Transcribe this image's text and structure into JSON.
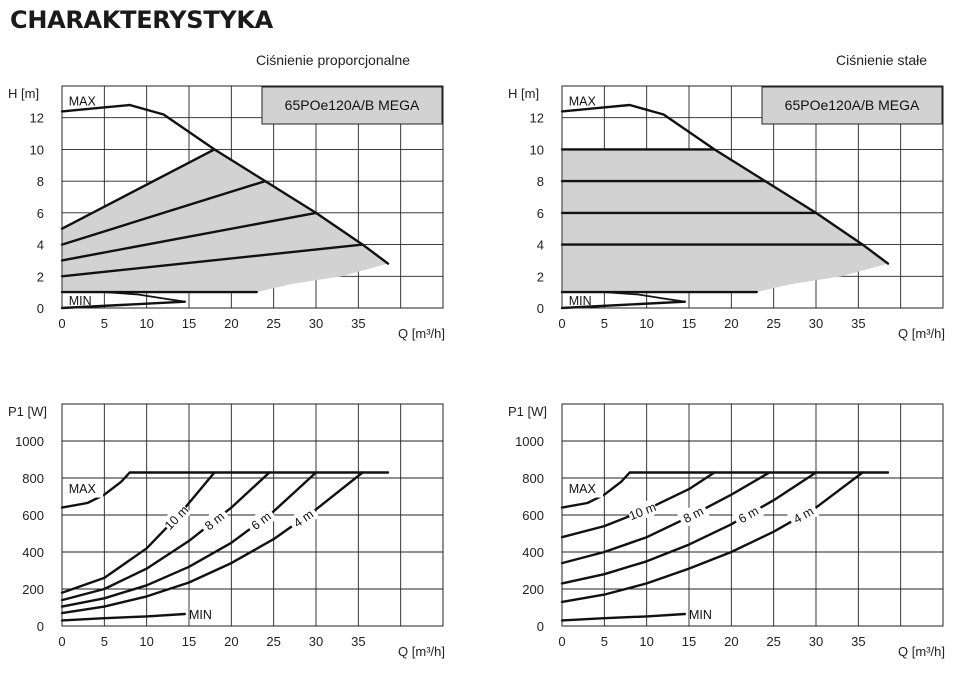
{
  "page_title": "CHARAKTERYSTYKA",
  "left_subtitle": "Ciśnienie proporcjonalne",
  "right_subtitle": "Ciśnienie stałe",
  "model": "65POe120A/B MEGA",
  "colors": {
    "band": "#d2d2d2",
    "line": "#111111",
    "grid": "#222222"
  },
  "chart_data": [
    {
      "id": "h-proportional",
      "type": "line",
      "mode": "proportional",
      "xlabel": "Q [m³/h]",
      "ylabel": "H [m]",
      "xlim": [
        0,
        45
      ],
      "ylim": [
        0,
        14
      ],
      "xticks": [
        0,
        5,
        10,
        15,
        20,
        25,
        30,
        35
      ],
      "yticks": [
        0,
        2,
        4,
        6,
        8,
        10,
        12
      ],
      "grid": true,
      "labels": {
        "max": "MAX",
        "min": "MIN"
      },
      "max_curve": [
        [
          0,
          12.4
        ],
        [
          4,
          12.6
        ],
        [
          8,
          12.8
        ],
        [
          12,
          12.2
        ],
        [
          18,
          10
        ],
        [
          24,
          8
        ],
        [
          30,
          6
        ],
        [
          35.5,
          4
        ],
        [
          38.5,
          2.8
        ]
      ],
      "min_curve": [
        [
          0,
          1
        ],
        [
          5,
          1
        ],
        [
          9,
          0.85
        ],
        [
          12,
          0.6
        ],
        [
          14.5,
          0.4
        ]
      ],
      "shaded_region": [
        [
          0,
          5
        ],
        [
          18,
          10
        ],
        [
          24,
          8
        ],
        [
          30,
          6
        ],
        [
          35.5,
          4
        ],
        [
          38.5,
          2.8
        ],
        [
          33,
          2
        ],
        [
          27,
          1.5
        ],
        [
          23,
          1
        ],
        [
          0,
          1
        ]
      ],
      "series": [
        {
          "points": [
            [
              0,
              5
            ],
            [
              18,
              10
            ]
          ]
        },
        {
          "points": [
            [
              0,
              4
            ],
            [
              24,
              8
            ]
          ]
        },
        {
          "points": [
            [
              0,
              3
            ],
            [
              30,
              6
            ]
          ]
        },
        {
          "points": [
            [
              0,
              2
            ],
            [
              35.5,
              4
            ]
          ]
        },
        {
          "points": [
            [
              0,
              1
            ],
            [
              23,
              1
            ]
          ]
        },
        {
          "points": [
            [
              0,
              0
            ],
            [
              14.5,
              0.4
            ]
          ]
        }
      ]
    },
    {
      "id": "h-constant",
      "type": "line",
      "mode": "constant",
      "xlabel": "Q [m³/h]",
      "ylabel": "H [m]",
      "xlim": [
        0,
        45
      ],
      "ylim": [
        0,
        14
      ],
      "xticks": [
        0,
        5,
        10,
        15,
        20,
        25,
        30,
        35
      ],
      "yticks": [
        0,
        2,
        4,
        6,
        8,
        10,
        12
      ],
      "grid": true,
      "labels": {
        "max": "MAX",
        "min": "MIN"
      },
      "max_curve": [
        [
          0,
          12.4
        ],
        [
          4,
          12.6
        ],
        [
          8,
          12.8
        ],
        [
          12,
          12.2
        ],
        [
          18,
          10
        ],
        [
          24,
          8
        ],
        [
          30,
          6
        ],
        [
          35.5,
          4
        ],
        [
          38.5,
          2.8
        ]
      ],
      "min_curve": [
        [
          0,
          1
        ],
        [
          5,
          1
        ],
        [
          9,
          0.85
        ],
        [
          12,
          0.6
        ],
        [
          14.5,
          0.4
        ]
      ],
      "shaded_region": [
        [
          0,
          10
        ],
        [
          18,
          10
        ],
        [
          24,
          8
        ],
        [
          30,
          6
        ],
        [
          35.5,
          4
        ],
        [
          38.5,
          2.8
        ],
        [
          33,
          2
        ],
        [
          27,
          1.5
        ],
        [
          23,
          1
        ],
        [
          0,
          1
        ]
      ],
      "series": [
        {
          "points": [
            [
              0,
              10
            ],
            [
              18,
              10
            ]
          ]
        },
        {
          "points": [
            [
              0,
              8
            ],
            [
              24,
              8
            ]
          ]
        },
        {
          "points": [
            [
              0,
              6
            ],
            [
              30,
              6
            ]
          ]
        },
        {
          "points": [
            [
              0,
              4
            ],
            [
              35.5,
              4
            ]
          ]
        },
        {
          "points": [
            [
              0,
              1
            ],
            [
              23,
              1
            ]
          ]
        },
        {
          "points": [
            [
              0,
              0
            ],
            [
              14.5,
              0.4
            ]
          ]
        }
      ]
    },
    {
      "id": "p1-proportional",
      "type": "line",
      "mode": "proportional",
      "xlabel": "Q [m³/h]",
      "ylabel": "P1 [W]",
      "xlim": [
        0,
        45
      ],
      "ylim": [
        0,
        1200
      ],
      "xticks": [
        0,
        5,
        10,
        15,
        20,
        25,
        30,
        35
      ],
      "yticks": [
        0,
        200,
        400,
        600,
        800,
        1000
      ],
      "grid": true,
      "labels": {
        "max": "MAX",
        "min": "MIN"
      },
      "series": [
        {
          "name": "MAX",
          "points": [
            [
              0,
              640
            ],
            [
              3,
              665
            ],
            [
              5,
              710
            ],
            [
              7,
              780
            ],
            [
              8,
              830
            ],
            [
              38.5,
              830
            ]
          ]
        },
        {
          "name": "10 m",
          "label_at": 13.5,
          "points": [
            [
              0,
              180
            ],
            [
              5,
              260
            ],
            [
              10,
              420
            ],
            [
              14,
              610
            ],
            [
              18,
              830
            ]
          ]
        },
        {
          "name": "8 m",
          "label_at": 18,
          "points": [
            [
              0,
              140
            ],
            [
              5,
              200
            ],
            [
              10,
              310
            ],
            [
              15,
              460
            ],
            [
              20,
              640
            ],
            [
              24.5,
              830
            ]
          ]
        },
        {
          "name": "6 m",
          "label_at": 23.5,
          "points": [
            [
              0,
              105
            ],
            [
              5,
              150
            ],
            [
              10,
              220
            ],
            [
              15,
              320
            ],
            [
              20,
              450
            ],
            [
              25,
              620
            ],
            [
              30,
              830
            ]
          ]
        },
        {
          "name": "4 m",
          "label_at": 28.5,
          "points": [
            [
              0,
              70
            ],
            [
              5,
              105
            ],
            [
              10,
              160
            ],
            [
              15,
              235
            ],
            [
              20,
              340
            ],
            [
              25,
              470
            ],
            [
              30,
              630
            ],
            [
              35.5,
              830
            ]
          ]
        },
        {
          "name": "MIN",
          "points": [
            [
              0,
              30
            ],
            [
              5,
              42
            ],
            [
              10,
              52
            ],
            [
              14.5,
              65
            ]
          ]
        }
      ]
    },
    {
      "id": "p1-constant",
      "type": "line",
      "mode": "constant",
      "xlabel": "Q [m³/h]",
      "ylabel": "P1 [W]",
      "xlim": [
        0,
        45
      ],
      "ylim": [
        0,
        1200
      ],
      "xticks": [
        0,
        5,
        10,
        15,
        20,
        25,
        30,
        35
      ],
      "yticks": [
        0,
        200,
        400,
        600,
        800,
        1000
      ],
      "grid": true,
      "labels": {
        "max": "MAX",
        "min": "MIN"
      },
      "series": [
        {
          "name": "MAX",
          "points": [
            [
              0,
              640
            ],
            [
              3,
              665
            ],
            [
              5,
              710
            ],
            [
              7,
              780
            ],
            [
              8,
              830
            ],
            [
              38.5,
              830
            ]
          ]
        },
        {
          "name": "10 m",
          "label_at": 9.5,
          "points": [
            [
              0,
              480
            ],
            [
              5,
              540
            ],
            [
              10,
              630
            ],
            [
              15,
              740
            ],
            [
              18,
              830
            ]
          ]
        },
        {
          "name": "8 m",
          "label_at": 15.5,
          "points": [
            [
              0,
              340
            ],
            [
              5,
              400
            ],
            [
              10,
              480
            ],
            [
              15,
              590
            ],
            [
              20,
              710
            ],
            [
              24.5,
              830
            ]
          ]
        },
        {
          "name": "6 m",
          "label_at": 22,
          "points": [
            [
              0,
              230
            ],
            [
              5,
              280
            ],
            [
              10,
              350
            ],
            [
              15,
              440
            ],
            [
              20,
              550
            ],
            [
              25,
              680
            ],
            [
              30,
              830
            ]
          ]
        },
        {
          "name": "4 m",
          "label_at": 28.5,
          "points": [
            [
              0,
              130
            ],
            [
              5,
              170
            ],
            [
              10,
              230
            ],
            [
              15,
              310
            ],
            [
              20,
              400
            ],
            [
              25,
              510
            ],
            [
              30,
              640
            ],
            [
              35.5,
              830
            ]
          ]
        },
        {
          "name": "MIN",
          "points": [
            [
              0,
              30
            ],
            [
              5,
              42
            ],
            [
              10,
              52
            ],
            [
              14.5,
              65
            ]
          ]
        }
      ]
    }
  ]
}
